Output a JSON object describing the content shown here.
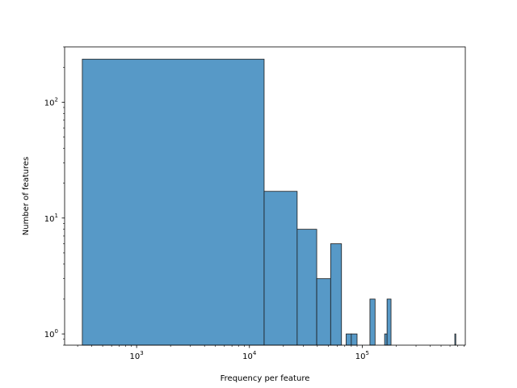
{
  "chart_data": {
    "type": "bar",
    "subtype": "histogram",
    "title": "",
    "xlabel": "Frequency per feature",
    "ylabel": "Number of features",
    "xscale": "log",
    "yscale": "log",
    "xlim": [
      230,
      820000
    ],
    "ylim": [
      0.8,
      300
    ],
    "grid": false,
    "legend": "none",
    "bar_color": "#5799c7",
    "edge_color": "#1a1a1a",
    "x_ticks": [
      {
        "base": "10",
        "exp": "3",
        "value": 1000
      },
      {
        "base": "10",
        "exp": "4",
        "value": 10000
      },
      {
        "base": "10",
        "exp": "5",
        "value": 100000
      }
    ],
    "y_ticks": [
      {
        "base": "10",
        "exp": "0",
        "value": 1
      },
      {
        "base": "10",
        "exp": "1",
        "value": 10
      },
      {
        "base": "10",
        "exp": "2",
        "value": 100
      }
    ],
    "bins": [
      {
        "x0": 330,
        "x1": 13500,
        "count": 235
      },
      {
        "x0": 13500,
        "x1": 26500,
        "count": 17
      },
      {
        "x0": 26500,
        "x1": 39500,
        "count": 8
      },
      {
        "x0": 39500,
        "x1": 52500,
        "count": 3
      },
      {
        "x0": 52500,
        "x1": 65500,
        "count": 6
      },
      {
        "x0": 72000,
        "x1": 80000,
        "count": 1
      },
      {
        "x0": 80000,
        "x1": 90000,
        "count": 1
      },
      {
        "x0": 117000,
        "x1": 130000,
        "count": 2
      },
      {
        "x0": 158000,
        "x1": 166000,
        "count": 1
      },
      {
        "x0": 166000,
        "x1": 180000,
        "count": 2
      },
      {
        "x0": 662000,
        "x1": 668000,
        "count": 1
      }
    ]
  }
}
